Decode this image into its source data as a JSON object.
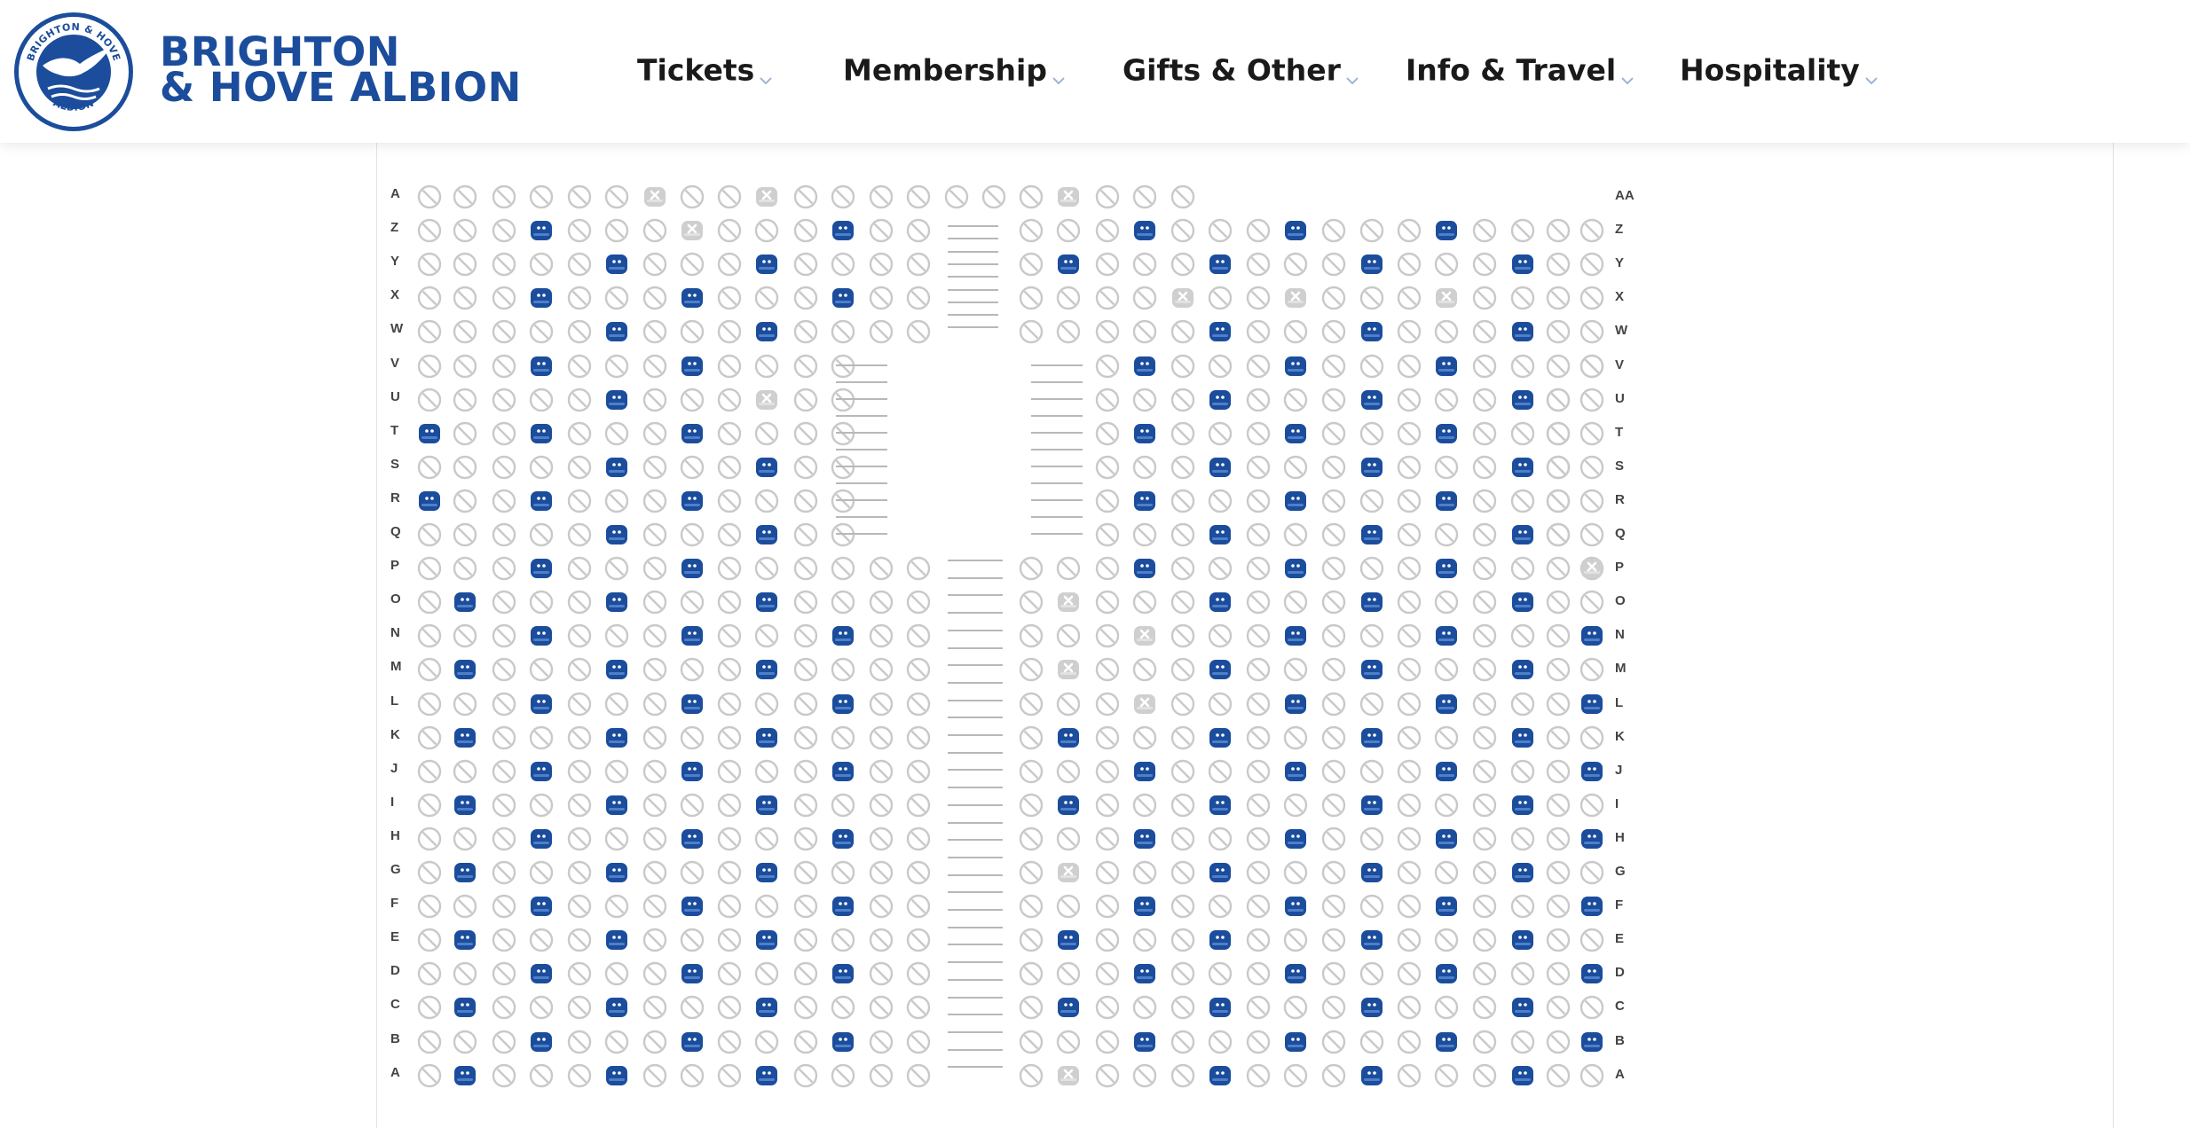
{
  "brand": {
    "name_line1": "BRIGHTON",
    "name_line2": "& HOVE ALBION",
    "crest_top_text": "BRIGHTON & HOVE",
    "crest_bottom_text": "ALBION",
    "color": "#1b4d9c"
  },
  "nav": {
    "items": [
      {
        "label": "Tickets",
        "icon": "chevron-down-icon"
      },
      {
        "label": "Membership",
        "icon": "chevron-down-icon"
      },
      {
        "label": "Gifts & Other",
        "icon": "chevron-down-icon"
      },
      {
        "label": "Info & Travel",
        "icon": "chevron-down-icon"
      },
      {
        "label": "Hospitality",
        "icon": "chevron-down-icon"
      }
    ]
  },
  "seat_map": {
    "legend_states": {
      "available": {
        "icon": "seat-icon",
        "color": "#1b4d9c"
      },
      "unavailable": {
        "icon": "no-entry-icon",
        "color": "#c9c9c9"
      },
      "reserved": {
        "icon": "reserved-seat-icon",
        "color": "#cfcfcf"
      }
    },
    "left_row_labels": [
      "A",
      "Z",
      "Y",
      "X",
      "W",
      "V",
      "U",
      "T",
      "S",
      "R",
      "Q",
      "P",
      "O",
      "N",
      "M",
      "L",
      "K",
      "J",
      "I",
      "H",
      "G",
      "F",
      "E",
      "D",
      "C",
      "B",
      "A"
    ],
    "right_row_labels": [
      "AA",
      "Z",
      "Y",
      "X",
      "W",
      "V",
      "U",
      "T",
      "S",
      "R",
      "Q",
      "P",
      "O",
      "N",
      "M",
      "L",
      "K",
      "J",
      "I",
      "H",
      "G",
      "F",
      "E",
      "D",
      "C",
      "B",
      "A"
    ]
  }
}
